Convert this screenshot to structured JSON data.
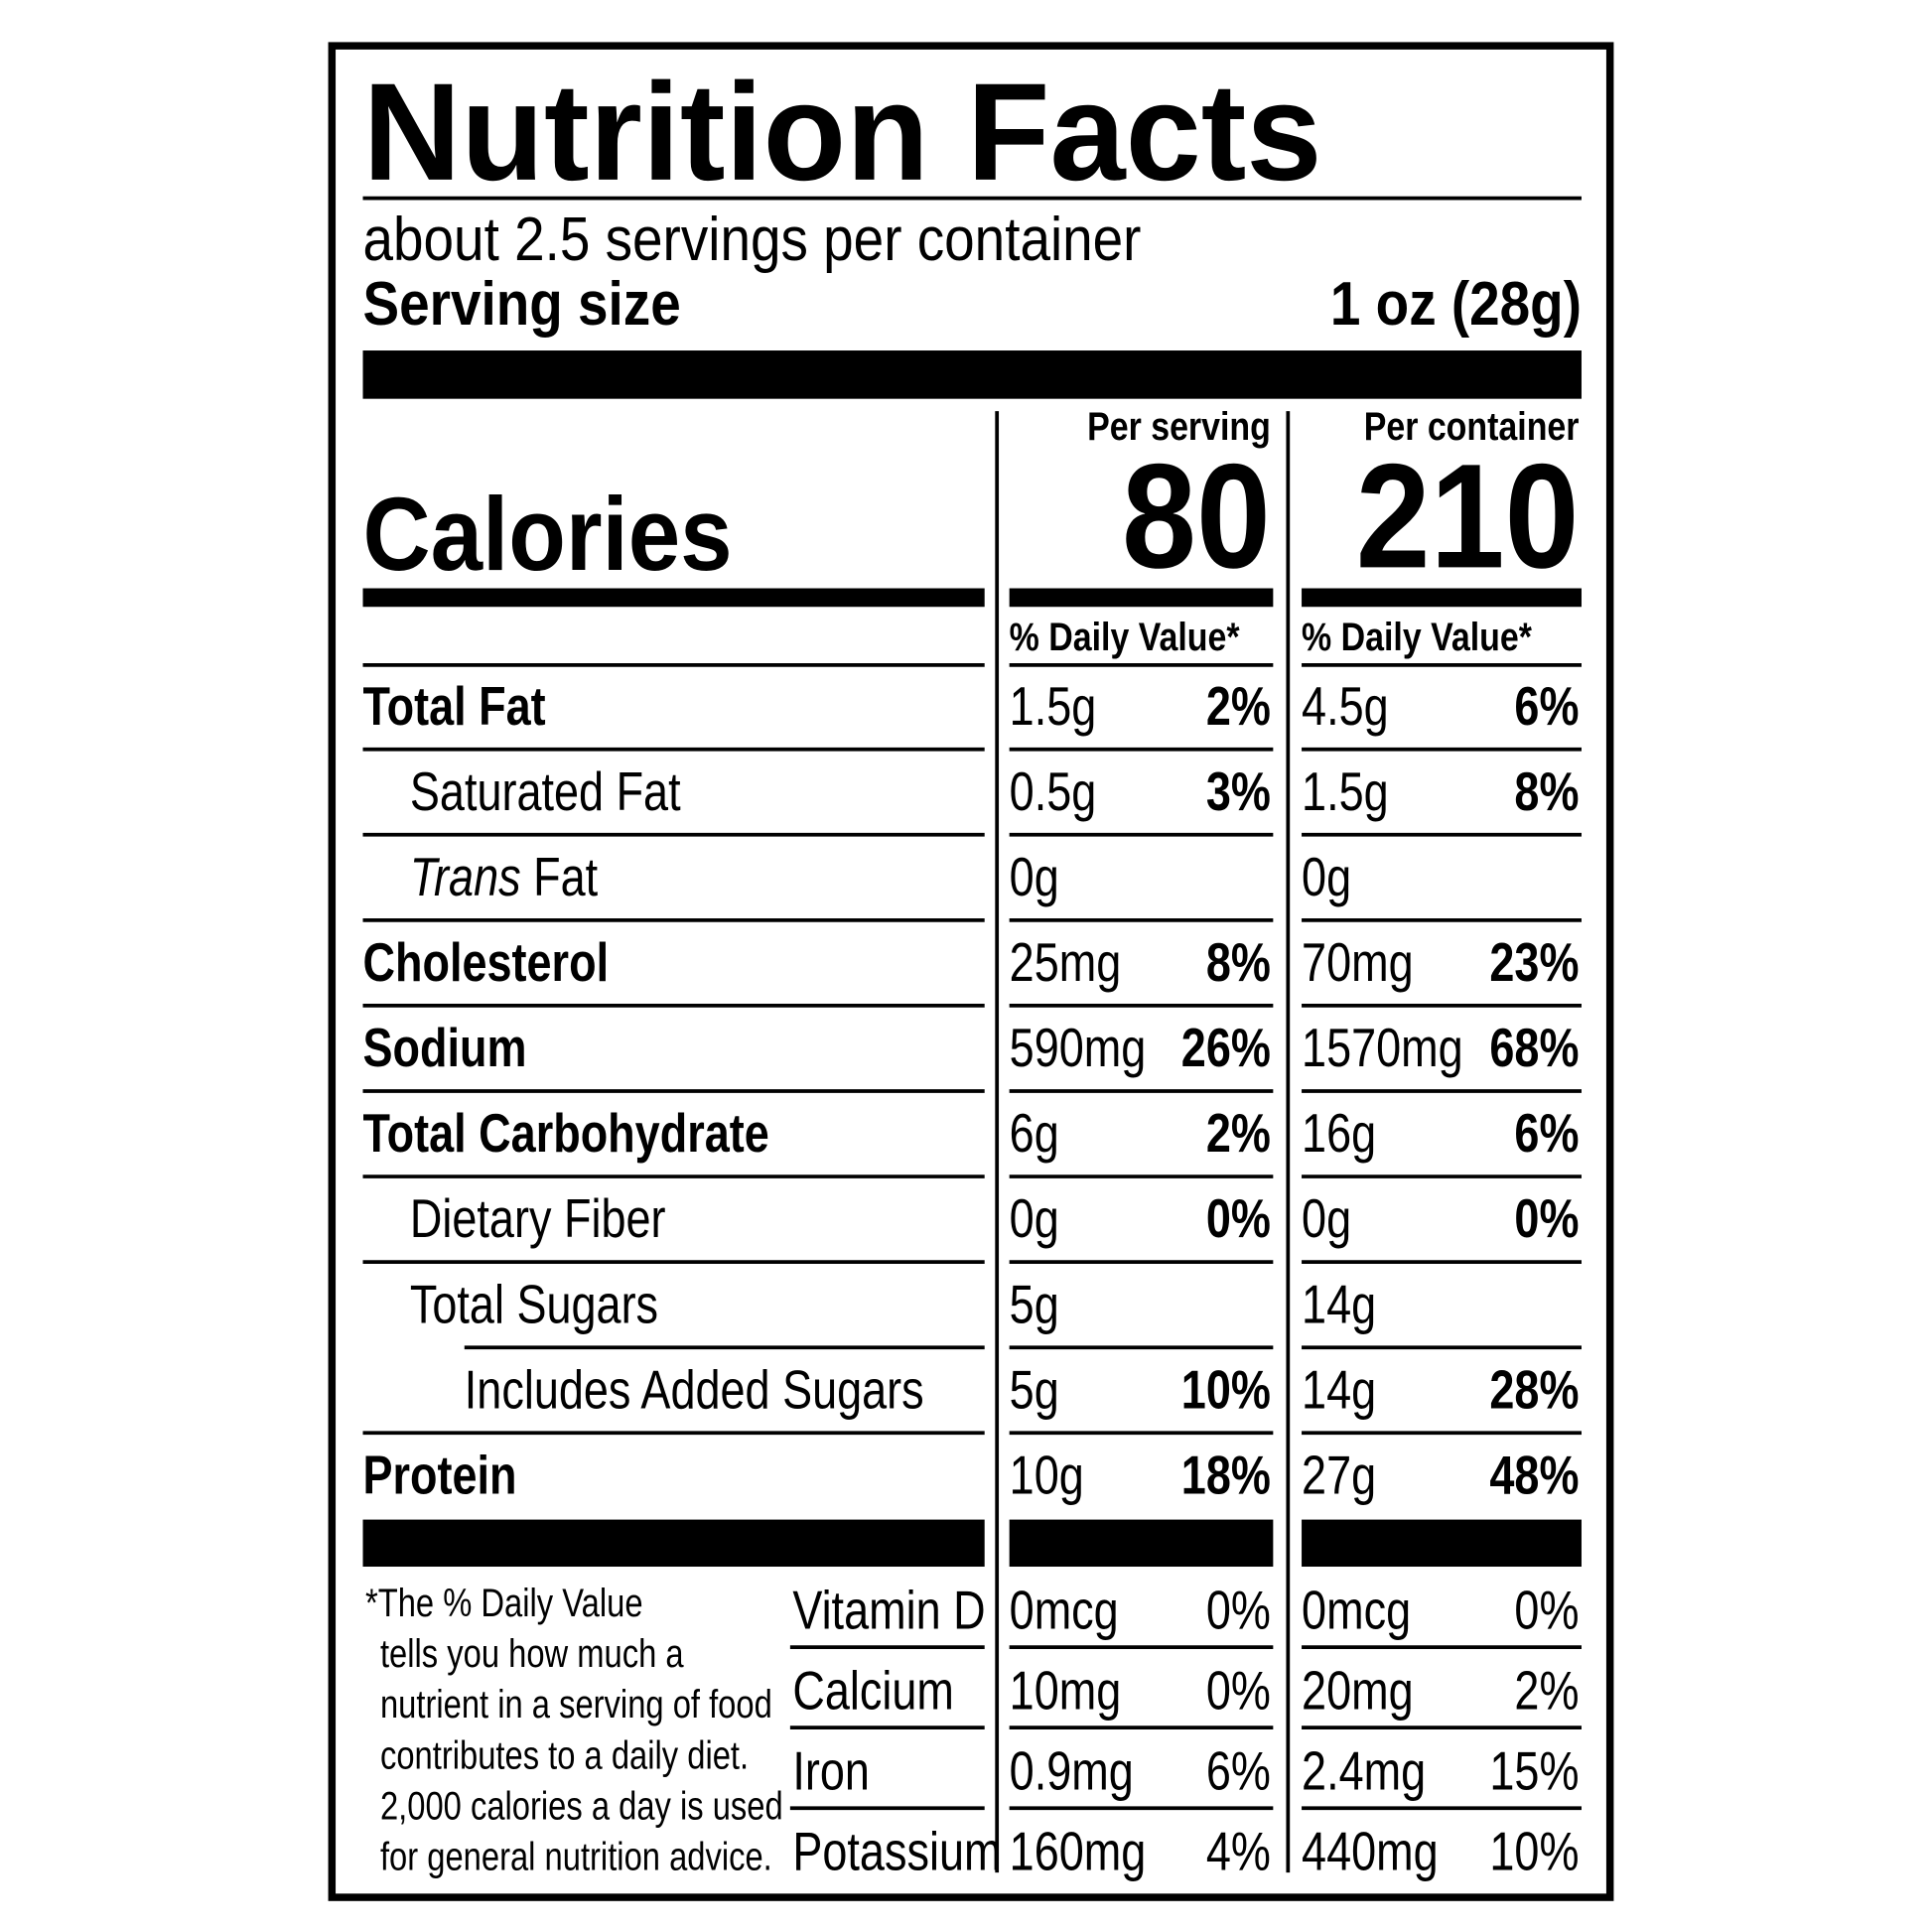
{
  "title": "Nutrition Facts",
  "servings": "about 2.5 servings per container",
  "serving_size": {
    "label": "Serving size",
    "value": "1 oz (28g)"
  },
  "calories_label": "Calories",
  "columns": [
    {
      "heading": "Per serving",
      "calories": 80,
      "dv": "% Daily Value*"
    },
    {
      "heading": "Per container",
      "calories": 210,
      "dv": "% Daily Value*"
    }
  ],
  "nutrients": [
    {
      "label": "Total Fat",
      "bold": true,
      "indent": 0,
      "values": [
        [
          "1.5g",
          "2%"
        ],
        [
          "4.5g",
          "6%"
        ]
      ]
    },
    {
      "label": "Saturated Fat",
      "bold": false,
      "indent": 1,
      "values": [
        [
          "0.5g",
          "3%"
        ],
        [
          "1.5g",
          "8%"
        ]
      ]
    },
    {
      "italic_prefix": "Trans",
      "label": "Fat",
      "bold": false,
      "indent": 1,
      "values": [
        [
          "0g"
        ],
        [
          "0g"
        ]
      ]
    },
    {
      "label": "Cholesterol",
      "bold": true,
      "indent": 0,
      "values": [
        [
          "25mg",
          "8%"
        ],
        [
          "70mg",
          "23%"
        ]
      ]
    },
    {
      "label": "Sodium",
      "bold": true,
      "indent": 0,
      "values": [
        [
          "590mg",
          "26%"
        ],
        [
          "1570mg",
          "68%"
        ]
      ]
    },
    {
      "label": "Total Carbohydrate",
      "bold": true,
      "indent": 0,
      "values": [
        [
          "6g",
          "2%"
        ],
        [
          "16g",
          "6%"
        ]
      ]
    },
    {
      "label": "Dietary Fiber",
      "bold": false,
      "indent": 1,
      "values": [
        [
          "0g",
          "0%"
        ],
        [
          "0g",
          "0%"
        ]
      ]
    },
    {
      "label": "Total Sugars",
      "bold": false,
      "indent": 1,
      "values": [
        [
          "5g"
        ],
        [
          "14g"
        ]
      ]
    },
    {
      "label": "Includes Added Sugars",
      "bold": false,
      "indent": 2,
      "values": [
        [
          "5g",
          "10%"
        ],
        [
          "14g",
          "28%"
        ]
      ]
    },
    {
      "label": "Protein",
      "bold": true,
      "indent": 0,
      "values": [
        [
          "10g",
          "18%"
        ],
        [
          "27g",
          "48%"
        ]
      ]
    }
  ],
  "vitamins": [
    {
      "label": "Vitamin D",
      "values": [
        [
          "0mcg",
          "0%"
        ],
        [
          "0mcg",
          "0%"
        ]
      ]
    },
    {
      "label": "Calcium",
      "values": [
        [
          "10mg",
          "0%"
        ],
        [
          "20mg",
          "2%"
        ]
      ]
    },
    {
      "label": "Iron",
      "values": [
        [
          "0.9mg",
          "6%"
        ],
        [
          "2.4mg",
          "15%"
        ]
      ]
    },
    {
      "label": "Potassium",
      "values": [
        [
          "160mg",
          "4%"
        ],
        [
          "440mg",
          "10%"
        ]
      ]
    }
  ],
  "footnote": [
    "*The % Daily Value",
    "tells you how much a",
    "nutrient in a serving of food",
    "contributes to a daily diet.",
    "2,000 calories a day is used",
    "for general nutrition advice."
  ]
}
